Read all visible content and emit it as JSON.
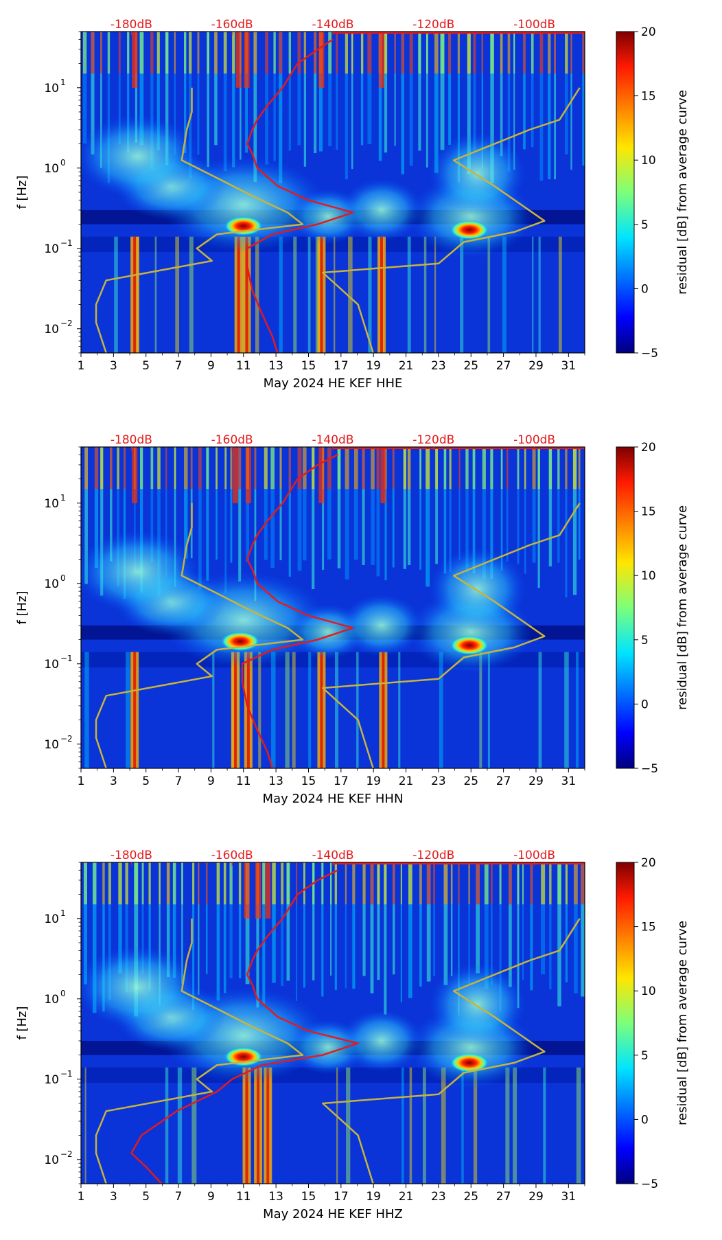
{
  "chart_data": [
    {
      "type": "heatmap",
      "title": "",
      "xlabel": "May 2024 HE KEF  HHE",
      "ylabel": "f [Hz]",
      "x_ticks": [
        "1",
        "3",
        "5",
        "7",
        "9",
        "11",
        "13",
        "15",
        "17",
        "19",
        "21",
        "23",
        "25",
        "27",
        "29",
        "31"
      ],
      "xlim": [
        1,
        32
      ],
      "y_ticks": [
        {
          "base": "10",
          "exp": "1"
        },
        {
          "base": "10",
          "exp": "0"
        },
        {
          "base": "10",
          "exp": "−1"
        },
        {
          "base": "10",
          "exp": "−2"
        }
      ],
      "ylim_hz": [
        0.005,
        50
      ],
      "top_axis_labels": [
        "-180dB",
        "-160dB",
        "-140dB",
        "-120dB",
        "-100dB"
      ],
      "top_axis_db": [
        -180,
        -160,
        -140,
        -120,
        -100
      ],
      "db_range": [
        -190,
        -90
      ],
      "colorbar": {
        "label": "residual [dB] from average curve",
        "min": -5,
        "max": 20,
        "ticks": [
          "20",
          "15",
          "10",
          "5",
          "0",
          "−5"
        ]
      },
      "energetic_days": [
        4.3,
        10.7,
        11.2,
        15.8,
        19.5
      ],
      "storm_events": [
        {
          "day": 11,
          "f_hz": 0.19
        },
        {
          "day": 24.9,
          "f_hz": 0.17
        }
      ],
      "series": [
        {
          "name": "average PSD",
          "color": "#e41a1c",
          "points": [
            [
              -140,
              40
            ],
            [
              -143,
              30
            ],
            [
              -147,
              20
            ],
            [
              -150,
              10
            ],
            [
              -153,
              6
            ],
            [
              -155,
              4
            ],
            [
              -156,
              3
            ],
            [
              -157,
              2
            ],
            [
              -156,
              1.5
            ],
            [
              -155,
              1
            ],
            [
              -151,
              0.6
            ],
            [
              -145,
              0.4
            ],
            [
              -136,
              0.28
            ],
            [
              -143,
              0.2
            ],
            [
              -152,
              0.15
            ],
            [
              -157,
              0.1
            ],
            [
              -157,
              0.06
            ],
            [
              -156,
              0.03
            ],
            [
              -154,
              0.015
            ],
            [
              -152,
              0.008
            ],
            [
              -151,
              0.005
            ]
          ]
        },
        {
          "name": "NLNM",
          "color": "#c8b43c",
          "points": [
            [
              -168,
              10
            ],
            [
              -168,
              5
            ],
            [
              -169,
              3
            ],
            [
              -170,
              1.25
            ],
            [
              -162,
              0.7
            ],
            [
              -156,
              0.45
            ],
            [
              -149,
              0.28
            ],
            [
              -146,
              0.2
            ],
            [
              -163,
              0.15
            ],
            [
              -167,
              0.1
            ],
            [
              -164,
              0.07
            ],
            [
              -185,
              0.04
            ],
            [
              -187,
              0.02
            ],
            [
              -187,
              0.012
            ],
            [
              -185,
              0.005
            ]
          ]
        },
        {
          "name": "NHNM",
          "color": "#c8b43c",
          "points": [
            [
              -91,
              10
            ],
            [
              -95,
              4
            ],
            [
              -101,
              3
            ],
            [
              -116,
              1.25
            ],
            [
              -108,
              0.6
            ],
            [
              -98,
              0.22
            ],
            [
              -104,
              0.16
            ],
            [
              -114,
              0.12
            ],
            [
              -119,
              0.065
            ],
            [
              -142,
              0.05
            ],
            [
              -135,
              0.02
            ],
            [
              -132,
              0.005
            ]
          ]
        }
      ]
    },
    {
      "type": "heatmap",
      "title": "",
      "xlabel": "May 2024 HE KEF  HHN",
      "ylabel": "f [Hz]",
      "x_ticks": [
        "1",
        "3",
        "5",
        "7",
        "9",
        "11",
        "13",
        "15",
        "17",
        "19",
        "21",
        "23",
        "25",
        "27",
        "29",
        "31"
      ],
      "xlim": [
        1,
        32
      ],
      "y_ticks": [
        {
          "base": "10",
          "exp": "1"
        },
        {
          "base": "10",
          "exp": "0"
        },
        {
          "base": "10",
          "exp": "−1"
        },
        {
          "base": "10",
          "exp": "−2"
        }
      ],
      "ylim_hz": [
        0.005,
        50
      ],
      "top_axis_labels": [
        "-180dB",
        "-160dB",
        "-140dB",
        "-120dB",
        "-100dB"
      ],
      "top_axis_db": [
        -180,
        -160,
        -140,
        -120,
        -100
      ],
      "db_range": [
        -190,
        -90
      ],
      "colorbar": {
        "label": "residual [dB] from average curve",
        "min": -5,
        "max": 20,
        "ticks": [
          "20",
          "15",
          "10",
          "5",
          "0",
          "−5"
        ]
      },
      "energetic_days": [
        4.3,
        10.5,
        11.3,
        15.8,
        19.6
      ],
      "storm_events": [
        {
          "day": 10.8,
          "f_hz": 0.19
        },
        {
          "day": 24.9,
          "f_hz": 0.17
        }
      ],
      "series": [
        {
          "name": "average PSD",
          "color": "#e41a1c",
          "points": [
            [
              -139,
              40
            ],
            [
              -143,
              30
            ],
            [
              -147,
              20
            ],
            [
              -150,
              10
            ],
            [
              -153,
              6
            ],
            [
              -155,
              4
            ],
            [
              -156,
              3
            ],
            [
              -157,
              2
            ],
            [
              -156,
              1.5
            ],
            [
              -155,
              1
            ],
            [
              -151,
              0.6
            ],
            [
              -145,
              0.4
            ],
            [
              -136,
              0.28
            ],
            [
              -143,
              0.2
            ],
            [
              -152,
              0.15
            ],
            [
              -158,
              0.1
            ],
            [
              -158,
              0.06
            ],
            [
              -157,
              0.03
            ],
            [
              -155,
              0.015
            ],
            [
              -153,
              0.008
            ],
            [
              -152,
              0.005
            ]
          ]
        },
        {
          "name": "NLNM",
          "color": "#c8b43c",
          "points": [
            [
              -168,
              10
            ],
            [
              -168,
              5
            ],
            [
              -169,
              3
            ],
            [
              -170,
              1.25
            ],
            [
              -162,
              0.7
            ],
            [
              -156,
              0.45
            ],
            [
              -149,
              0.28
            ],
            [
              -146,
              0.2
            ],
            [
              -163,
              0.15
            ],
            [
              -167,
              0.1
            ],
            [
              -164,
              0.07
            ],
            [
              -185,
              0.04
            ],
            [
              -187,
              0.02
            ],
            [
              -187,
              0.012
            ],
            [
              -185,
              0.005
            ]
          ]
        },
        {
          "name": "NHNM",
          "color": "#c8b43c",
          "points": [
            [
              -91,
              10
            ],
            [
              -95,
              4
            ],
            [
              -101,
              3
            ],
            [
              -116,
              1.25
            ],
            [
              -108,
              0.6
            ],
            [
              -98,
              0.22
            ],
            [
              -104,
              0.16
            ],
            [
              -114,
              0.12
            ],
            [
              -119,
              0.065
            ],
            [
              -142,
              0.05
            ],
            [
              -135,
              0.02
            ],
            [
              -132,
              0.005
            ]
          ]
        }
      ]
    },
    {
      "type": "heatmap",
      "title": "",
      "xlabel": "May 2024 HE KEF  HHZ",
      "ylabel": "f [Hz]",
      "x_ticks": [
        "1",
        "3",
        "5",
        "7",
        "9",
        "11",
        "13",
        "15",
        "17",
        "19",
        "21",
        "23",
        "25",
        "27",
        "29",
        "31"
      ],
      "xlim": [
        1,
        32
      ],
      "y_ticks": [
        {
          "base": "10",
          "exp": "1"
        },
        {
          "base": "10",
          "exp": "0"
        },
        {
          "base": "10",
          "exp": "−1"
        },
        {
          "base": "10",
          "exp": "−2"
        }
      ],
      "ylim_hz": [
        0.005,
        50
      ],
      "top_axis_labels": [
        "-180dB",
        "-160dB",
        "-140dB",
        "-120dB",
        "-100dB"
      ],
      "top_axis_db": [
        -180,
        -160,
        -140,
        -120,
        -100
      ],
      "db_range": [
        -190,
        -90
      ],
      "colorbar": {
        "label": "residual [dB] from average curve",
        "min": -5,
        "max": 20,
        "ticks": [
          "20",
          "15",
          "10",
          "5",
          "0",
          "−5"
        ]
      },
      "energetic_days": [
        11.2,
        11.9,
        12.5
      ],
      "storm_events": [
        {
          "day": 11,
          "f_hz": 0.19
        },
        {
          "day": 24.9,
          "f_hz": 0.16
        }
      ],
      "series": [
        {
          "name": "average PSD",
          "color": "#e41a1c",
          "points": [
            [
              -139,
              40
            ],
            [
              -143,
              30
            ],
            [
              -147,
              20
            ],
            [
              -150,
              10
            ],
            [
              -153,
              6
            ],
            [
              -155,
              4
            ],
            [
              -156,
              3
            ],
            [
              -157,
              2
            ],
            [
              -156,
              1.5
            ],
            [
              -155,
              1
            ],
            [
              -151,
              0.6
            ],
            [
              -145,
              0.4
            ],
            [
              -135,
              0.28
            ],
            [
              -142,
              0.2
            ],
            [
              -154,
              0.15
            ],
            [
              -160,
              0.1
            ],
            [
              -163,
              0.07
            ],
            [
              -171,
              0.04
            ],
            [
              -178,
              0.02
            ],
            [
              -180,
              0.012
            ],
            [
              -177,
              0.008
            ],
            [
              -174,
              0.005
            ]
          ]
        },
        {
          "name": "NLNM",
          "color": "#c8b43c",
          "points": [
            [
              -168,
              10
            ],
            [
              -168,
              5
            ],
            [
              -169,
              3
            ],
            [
              -170,
              1.25
            ],
            [
              -162,
              0.7
            ],
            [
              -156,
              0.45
            ],
            [
              -149,
              0.28
            ],
            [
              -146,
              0.2
            ],
            [
              -163,
              0.15
            ],
            [
              -167,
              0.1
            ],
            [
              -164,
              0.07
            ],
            [
              -185,
              0.04
            ],
            [
              -187,
              0.02
            ],
            [
              -187,
              0.012
            ],
            [
              -185,
              0.005
            ]
          ]
        },
        {
          "name": "NHNM",
          "color": "#c8b43c",
          "points": [
            [
              -91,
              10
            ],
            [
              -95,
              4
            ],
            [
              -101,
              3
            ],
            [
              -116,
              1.25
            ],
            [
              -108,
              0.6
            ],
            [
              -98,
              0.22
            ],
            [
              -104,
              0.16
            ],
            [
              -114,
              0.12
            ],
            [
              -119,
              0.065
            ],
            [
              -142,
              0.05
            ],
            [
              -135,
              0.02
            ],
            [
              -132,
              0.005
            ]
          ]
        }
      ]
    }
  ]
}
